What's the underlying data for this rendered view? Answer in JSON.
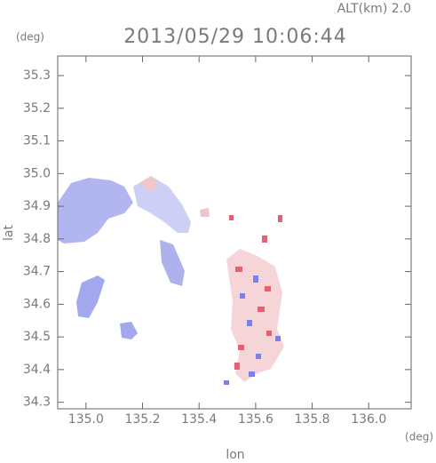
{
  "chart_data": {
    "type": "field",
    "title": "2013/05/29 10:06:44",
    "annotation": "ALT(km) 2.0",
    "xlabel": "lon",
    "ylabel": "lat",
    "x_unit": "(deg)",
    "y_unit": "(deg)",
    "xlim": [
      134.9,
      136.15
    ],
    "ylim": [
      34.28,
      35.36
    ],
    "xticks": [
      {
        "value": 135,
        "label": "135.0"
      },
      {
        "value": 135.2,
        "label": "135.2"
      },
      {
        "value": 135.4,
        "label": "135.4"
      },
      {
        "value": 135.6,
        "label": "135.6"
      },
      {
        "value": 135.8,
        "label": "135.8"
      },
      {
        "value": 136,
        "label": "136.0"
      }
    ],
    "yticks": [
      34.3,
      34.4,
      34.5,
      34.6,
      34.7,
      34.8,
      34.9,
      {
        "value": 35,
        "label": "35.0"
      },
      35.1,
      35.2,
      35.3
    ]
  }
}
